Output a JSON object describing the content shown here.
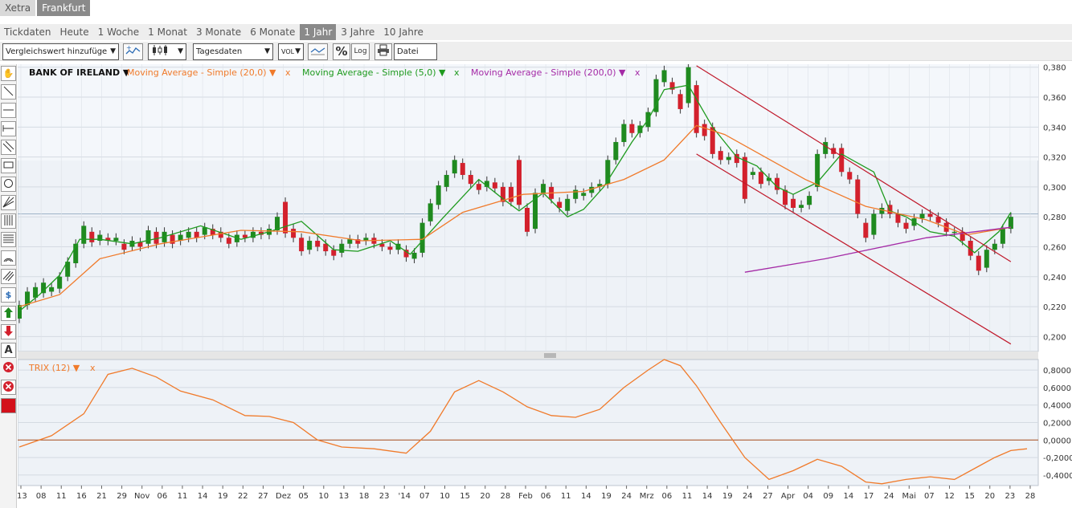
{
  "exchange_tabs": [
    {
      "label": "Xetra",
      "active": false
    },
    {
      "label": "Frankfurt",
      "active": true
    }
  ],
  "period_tabs": [
    {
      "label": "Tickdaten",
      "active": false
    },
    {
      "label": "Heute",
      "active": false
    },
    {
      "label": "1 Woche",
      "active": false
    },
    {
      "label": "1 Monat",
      "active": false
    },
    {
      "label": "3 Monate",
      "active": false
    },
    {
      "label": "6 Monate",
      "active": false
    },
    {
      "label": "1 Jahr",
      "active": true
    },
    {
      "label": "3 Jahre",
      "active": false
    },
    {
      "label": "10 Jahre",
      "active": false
    }
  ],
  "toolbar": {
    "compare_select": "Vergleichswert hinzufüge",
    "data_select": "Tagesdaten",
    "vol_label": "VOL",
    "percent_label": "%",
    "log_label": "Log",
    "file_label": "Datei"
  },
  "legend": {
    "instrument": "BANK OF IRELAND ▼",
    "ma20": "Moving Average - Simple (20,0) ▼",
    "ma5": "Moving Average - Simple (5,0) ▼",
    "ma200": "Moving Average - Simple (200,0) ▼",
    "close": "x",
    "trix": "TRIX (12) ▼"
  },
  "colors": {
    "candle_up": "#1f8a1f",
    "candle_down": "#d3212d",
    "ma20": "#f07a2a",
    "ma5": "#1e9a1e",
    "ma200": "#a42aa6",
    "channel": "#c0182a",
    "trix": "#f07a2a",
    "zero_line": "#a64a1a"
  },
  "chart_data": [
    {
      "type": "candlestick",
      "title": "BANK OF IRELAND",
      "y_ticks": [
        "0,380",
        "0,360",
        "0,340",
        "0,320",
        "0,300",
        "0,280",
        "0,260",
        "0,240",
        "0,220",
        "0,200"
      ],
      "ylim": [
        0.19,
        0.382
      ],
      "x_ticks": [
        "'13",
        "08",
        "11",
        "16",
        "21",
        "29",
        "Nov",
        "06",
        "11",
        "14",
        "19",
        "22",
        "27",
        "Dez",
        "05",
        "10",
        "13",
        "18",
        "23",
        "'14",
        "07",
        "10",
        "15",
        "20",
        "28",
        "Feb",
        "06",
        "11",
        "14",
        "19",
        "24",
        "Mrz",
        "06",
        "11",
        "14",
        "19",
        "24",
        "27",
        "Apr",
        "04",
        "09",
        "14",
        "17",
        "24",
        "Mai",
        "07",
        "12",
        "15",
        "20",
        "23",
        "28"
      ],
      "last_price_line": 0.282,
      "series": [
        {
          "name": "Moving Average - Simple (5,0)",
          "x": [
            0,
            5,
            10,
            15,
            20,
            28,
            35,
            45,
            55,
            62,
            70,
            78,
            84,
            92,
            97,
            105,
            114,
            120,
            124,
            130,
            136,
            140,
            145,
            152,
            156,
            160,
            166,
            172,
            178,
            183,
            188,
            192,
            198,
            204,
            212,
            216,
            220,
            226,
            232,
            237,
            243,
            246
          ],
          "y": [
            0.217,
            0.228,
            0.241,
            0.265,
            0.265,
            0.262,
            0.266,
            0.274,
            0.265,
            0.27,
            0.277,
            0.258,
            0.257,
            0.264,
            0.255,
            0.279,
            0.305,
            0.292,
            0.284,
            0.296,
            0.28,
            0.285,
            0.3,
            0.33,
            0.345,
            0.365,
            0.368,
            0.34,
            0.32,
            0.314,
            0.3,
            0.295,
            0.303,
            0.322,
            0.31,
            0.284,
            0.28,
            0.27,
            0.267,
            0.256,
            0.27,
            0.283
          ]
        },
        {
          "name": "Moving Average - Simple (20,0)",
          "x": [
            0,
            10,
            20,
            35,
            55,
            70,
            85,
            100,
            110,
            125,
            140,
            150,
            160,
            168,
            175,
            185,
            195,
            210,
            225,
            235,
            246
          ],
          "y": [
            0.22,
            0.228,
            0.252,
            0.262,
            0.271,
            0.27,
            0.264,
            0.265,
            0.283,
            0.295,
            0.297,
            0.305,
            0.318,
            0.341,
            0.335,
            0.32,
            0.305,
            0.287,
            0.278,
            0.268,
            0.273
          ]
        },
        {
          "name": "Moving Average - Simple (200,0)",
          "x": [
            180,
            200,
            225,
            246
          ],
          "y": [
            0.243,
            0.252,
            0.266,
            0.273
          ]
        }
      ],
      "channel_lines": [
        {
          "x": [
            168,
            246
          ],
          "y": [
            0.381,
            0.25
          ]
        },
        {
          "x": [
            168,
            246
          ],
          "y": [
            0.322,
            0.195
          ]
        }
      ],
      "candles": [
        [
          0,
          0.212,
          0.221
        ],
        [
          2,
          0.221,
          0.23
        ],
        [
          4,
          0.226,
          0.233
        ],
        [
          6,
          0.229,
          0.236
        ],
        [
          8,
          0.23,
          0.233
        ],
        [
          10,
          0.232,
          0.24
        ],
        [
          12,
          0.24,
          0.25
        ],
        [
          14,
          0.249,
          0.262
        ],
        [
          16,
          0.262,
          0.274
        ],
        [
          18,
          0.27,
          0.263
        ],
        [
          20,
          0.264,
          0.268
        ],
        [
          22,
          0.266,
          0.264
        ],
        [
          24,
          0.264,
          0.266
        ],
        [
          26,
          0.262,
          0.258
        ],
        [
          28,
          0.26,
          0.264
        ],
        [
          30,
          0.263,
          0.26
        ],
        [
          32,
          0.262,
          0.271
        ],
        [
          34,
          0.27,
          0.262
        ],
        [
          36,
          0.263,
          0.27
        ],
        [
          38,
          0.268,
          0.262
        ],
        [
          40,
          0.264,
          0.268
        ],
        [
          42,
          0.266,
          0.27
        ],
        [
          44,
          0.27,
          0.266
        ],
        [
          46,
          0.268,
          0.273
        ],
        [
          48,
          0.272,
          0.268
        ],
        [
          50,
          0.27,
          0.266
        ],
        [
          52,
          0.266,
          0.262
        ],
        [
          54,
          0.263,
          0.268
        ],
        [
          56,
          0.268,
          0.266
        ],
        [
          58,
          0.266,
          0.27
        ],
        [
          60,
          0.27,
          0.268
        ],
        [
          62,
          0.268,
          0.272
        ],
        [
          64,
          0.271,
          0.28
        ],
        [
          66,
          0.29,
          0.269
        ],
        [
          68,
          0.272,
          0.266
        ],
        [
          70,
          0.266,
          0.257
        ],
        [
          72,
          0.258,
          0.264
        ],
        [
          74,
          0.264,
          0.26
        ],
        [
          76,
          0.262,
          0.257
        ],
        [
          78,
          0.258,
          0.254
        ],
        [
          80,
          0.256,
          0.262
        ],
        [
          82,
          0.262,
          0.265
        ],
        [
          84,
          0.265,
          0.262
        ],
        [
          86,
          0.264,
          0.266
        ],
        [
          88,
          0.266,
          0.262
        ],
        [
          90,
          0.262,
          0.26
        ],
        [
          92,
          0.26,
          0.258
        ],
        [
          94,
          0.258,
          0.262
        ],
        [
          96,
          0.258,
          0.253
        ],
        [
          98,
          0.252,
          0.256
        ],
        [
          100,
          0.256,
          0.276
        ],
        [
          102,
          0.277,
          0.289
        ],
        [
          104,
          0.288,
          0.301
        ],
        [
          106,
          0.3,
          0.308
        ],
        [
          108,
          0.309,
          0.318
        ],
        [
          110,
          0.316,
          0.308
        ],
        [
          112,
          0.308,
          0.302
        ],
        [
          114,
          0.302,
          0.298
        ],
        [
          116,
          0.3,
          0.304
        ],
        [
          118,
          0.303,
          0.299
        ],
        [
          120,
          0.3,
          0.29
        ],
        [
          122,
          0.3,
          0.29
        ],
        [
          124,
          0.318,
          0.288
        ],
        [
          126,
          0.286,
          0.27
        ],
        [
          128,
          0.272,
          0.296
        ],
        [
          130,
          0.296,
          0.302
        ],
        [
          132,
          0.3,
          0.292
        ],
        [
          134,
          0.29,
          0.286
        ],
        [
          136,
          0.284,
          0.292
        ],
        [
          138,
          0.292,
          0.298
        ],
        [
          140,
          0.294,
          0.296
        ],
        [
          142,
          0.296,
          0.3
        ],
        [
          144,
          0.3,
          0.302
        ],
        [
          146,
          0.302,
          0.318
        ],
        [
          148,
          0.318,
          0.33
        ],
        [
          150,
          0.33,
          0.342
        ],
        [
          152,
          0.342,
          0.336
        ],
        [
          154,
          0.336,
          0.341
        ],
        [
          156,
          0.34,
          0.35
        ],
        [
          158,
          0.35,
          0.372
        ],
        [
          160,
          0.37,
          0.378
        ],
        [
          162,
          0.37,
          0.365
        ],
        [
          164,
          0.362,
          0.352
        ],
        [
          166,
          0.356,
          0.38
        ],
        [
          168,
          0.368,
          0.336
        ],
        [
          170,
          0.342,
          0.334
        ],
        [
          172,
          0.34,
          0.322
        ],
        [
          174,
          0.324,
          0.318
        ],
        [
          176,
          0.318,
          0.32
        ],
        [
          178,
          0.322,
          0.316
        ],
        [
          180,
          0.32,
          0.292
        ],
        [
          182,
          0.308,
          0.31
        ],
        [
          184,
          0.31,
          0.302
        ],
        [
          186,
          0.304,
          0.306
        ],
        [
          188,
          0.306,
          0.298
        ],
        [
          190,
          0.298,
          0.288
        ],
        [
          192,
          0.292,
          0.286
        ],
        [
          194,
          0.286,
          0.288
        ],
        [
          196,
          0.288,
          0.294
        ],
        [
          198,
          0.3,
          0.322
        ],
        [
          200,
          0.322,
          0.33
        ],
        [
          202,
          0.326,
          0.322
        ],
        [
          204,
          0.326,
          0.31
        ],
        [
          206,
          0.31,
          0.305
        ],
        [
          208,
          0.305,
          0.282
        ],
        [
          210,
          0.276,
          0.266
        ],
        [
          212,
          0.268,
          0.282
        ],
        [
          214,
          0.282,
          0.286
        ],
        [
          216,
          0.288,
          0.282
        ],
        [
          218,
          0.282,
          0.276
        ],
        [
          220,
          0.276,
          0.272
        ],
        [
          222,
          0.274,
          0.279
        ],
        [
          224,
          0.279,
          0.282
        ],
        [
          226,
          0.282,
          0.28
        ],
        [
          228,
          0.28,
          0.276
        ],
        [
          230,
          0.276,
          0.27
        ],
        [
          232,
          0.27,
          0.27
        ],
        [
          234,
          0.27,
          0.264
        ],
        [
          236,
          0.264,
          0.254
        ],
        [
          238,
          0.254,
          0.244
        ],
        [
          240,
          0.246,
          0.258
        ],
        [
          242,
          0.258,
          0.262
        ],
        [
          244,
          0.262,
          0.272
        ],
        [
          246,
          0.272,
          0.28
        ]
      ]
    },
    {
      "type": "line",
      "title": "TRIX (12)",
      "y_ticks": [
        "0,8000",
        "0,6000",
        "0,4000",
        "0,2000",
        "0,0000",
        "-0,2000",
        "-0,4000"
      ],
      "ylim": [
        -0.52,
        0.92
      ],
      "series": [
        {
          "name": "TRIX (12)",
          "x": [
            0,
            8,
            16,
            22,
            28,
            34,
            40,
            48,
            56,
            62,
            68,
            74,
            80,
            88,
            96,
            102,
            108,
            114,
            120,
            126,
            132,
            138,
            144,
            150,
            156,
            160,
            164,
            168,
            174,
            180,
            186,
            192,
            198,
            204,
            210,
            214,
            220,
            226,
            232,
            238,
            242,
            246,
            250
          ],
          "y": [
            -0.08,
            0.05,
            0.3,
            0.75,
            0.82,
            0.72,
            0.56,
            0.46,
            0.28,
            0.27,
            0.2,
            0.0,
            -0.08,
            -0.1,
            -0.15,
            0.1,
            0.55,
            0.68,
            0.55,
            0.38,
            0.28,
            0.26,
            0.35,
            0.6,
            0.8,
            0.92,
            0.85,
            0.62,
            0.2,
            -0.2,
            -0.45,
            -0.35,
            -0.22,
            -0.3,
            -0.48,
            -0.5,
            -0.45,
            -0.42,
            -0.45,
            -0.3,
            -0.2,
            -0.12,
            -0.1
          ]
        }
      ]
    }
  ]
}
